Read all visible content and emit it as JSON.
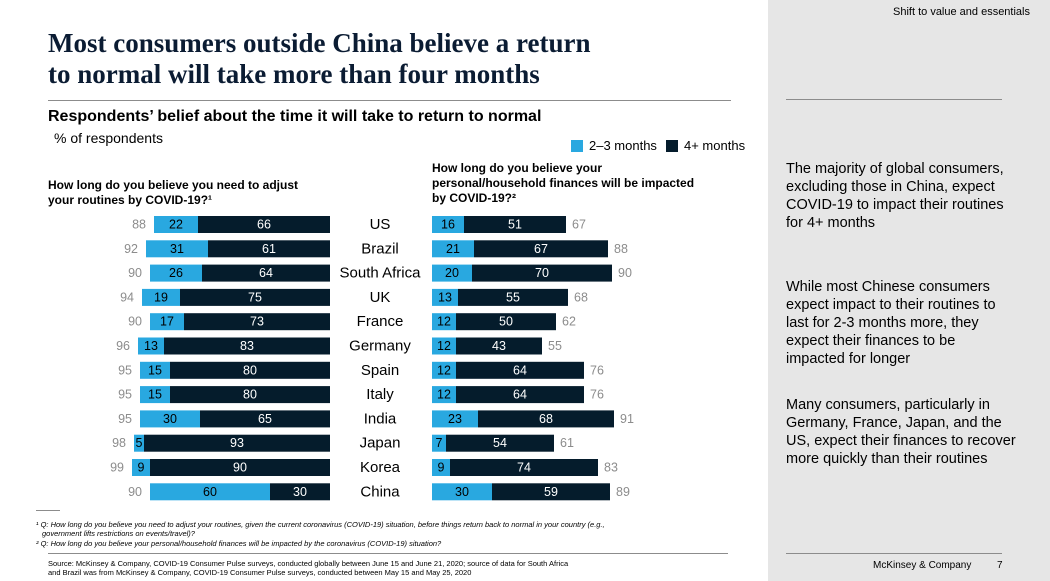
{
  "header": {
    "section_tag": "Shift to value and essentials",
    "title_line1": "Most consumers outside China believe a return",
    "title_line2": "to normal will take more than four months",
    "subtitle": "Respondents’ belief about the time it will take to return to normal",
    "unit": "% of respondents"
  },
  "colors": {
    "short": "#29a8e0",
    "long": "#051c2c",
    "total_text": "#8c8c8c",
    "title": "#0b1c33",
    "panel": "#e6e6e6"
  },
  "chart_data": {
    "type": "bar",
    "orientation": "horizontal",
    "stacked": true,
    "categories": [
      "US",
      "Brazil",
      "South Africa",
      "UK",
      "France",
      "Germany",
      "Spain",
      "Italy",
      "India",
      "Japan",
      "Korea",
      "China"
    ],
    "legend": [
      {
        "name": "2–3 months",
        "color": "#29a8e0"
      },
      {
        "name": "4+ months",
        "color": "#051c2c"
      }
    ],
    "legend_position": "top-right",
    "panels": [
      {
        "question_line1": "How long do you believe you need to adjust",
        "question_line2": "your routines by COVID-19?¹",
        "question_line3": "",
        "direction": "left",
        "short": [
          22,
          31,
          26,
          19,
          17,
          13,
          15,
          15,
          30,
          5,
          9,
          60
        ],
        "long": [
          66,
          61,
          64,
          75,
          73,
          83,
          80,
          80,
          65,
          93,
          90,
          30
        ],
        "total": [
          88,
          92,
          90,
          94,
          90,
          96,
          95,
          95,
          95,
          98,
          99,
          90
        ]
      },
      {
        "question_line1": "How long do you believe your",
        "question_line2": "personal/household finances will be impacted",
        "question_line3": "by COVID-19?²",
        "direction": "right",
        "short": [
          16,
          21,
          20,
          13,
          12,
          12,
          12,
          12,
          23,
          7,
          9,
          30
        ],
        "long": [
          51,
          67,
          70,
          55,
          50,
          43,
          64,
          64,
          68,
          54,
          74,
          59
        ],
        "total": [
          67,
          88,
          90,
          68,
          62,
          55,
          76,
          76,
          91,
          61,
          83,
          89
        ]
      }
    ]
  },
  "takeaways": [
    "The majority of global consumers, excluding those in China, expect COVID-19 to impact their routines for 4+ months",
    "While most Chinese consumers expect impact to their routines to last for 2-3 months more, they expect their finances to be impacted for longer",
    "Many consumers, particularly in Germany, France, Japan, and the US, expect their finances to recover more quickly than their routines"
  ],
  "footnotes": {
    "fn1_line1": "¹ Q: How long do you believe you need to adjust your routines, given the current coronavirus (COVID-19) situation, before things return back to normal in your country (e.g.,",
    "fn1_line2": "government lifts restrictions on events/travel)?",
    "fn2": "² Q: How long do you believe your personal/household finances will be impacted by the coronavirus (COVID-19) situation?",
    "source_line1": "Source: McKinsey & Company, COVID-19 Consumer Pulse surveys, conducted globally between June 15 and June 21, 2020; source of data for South Africa",
    "source_line2": "and Brazil was from McKinsey & Company, COVID-19 Consumer Pulse surveys, conducted between May 15 and May 25, 2020"
  },
  "footer": {
    "brand": "McKinsey & Company",
    "page_number": "7"
  }
}
